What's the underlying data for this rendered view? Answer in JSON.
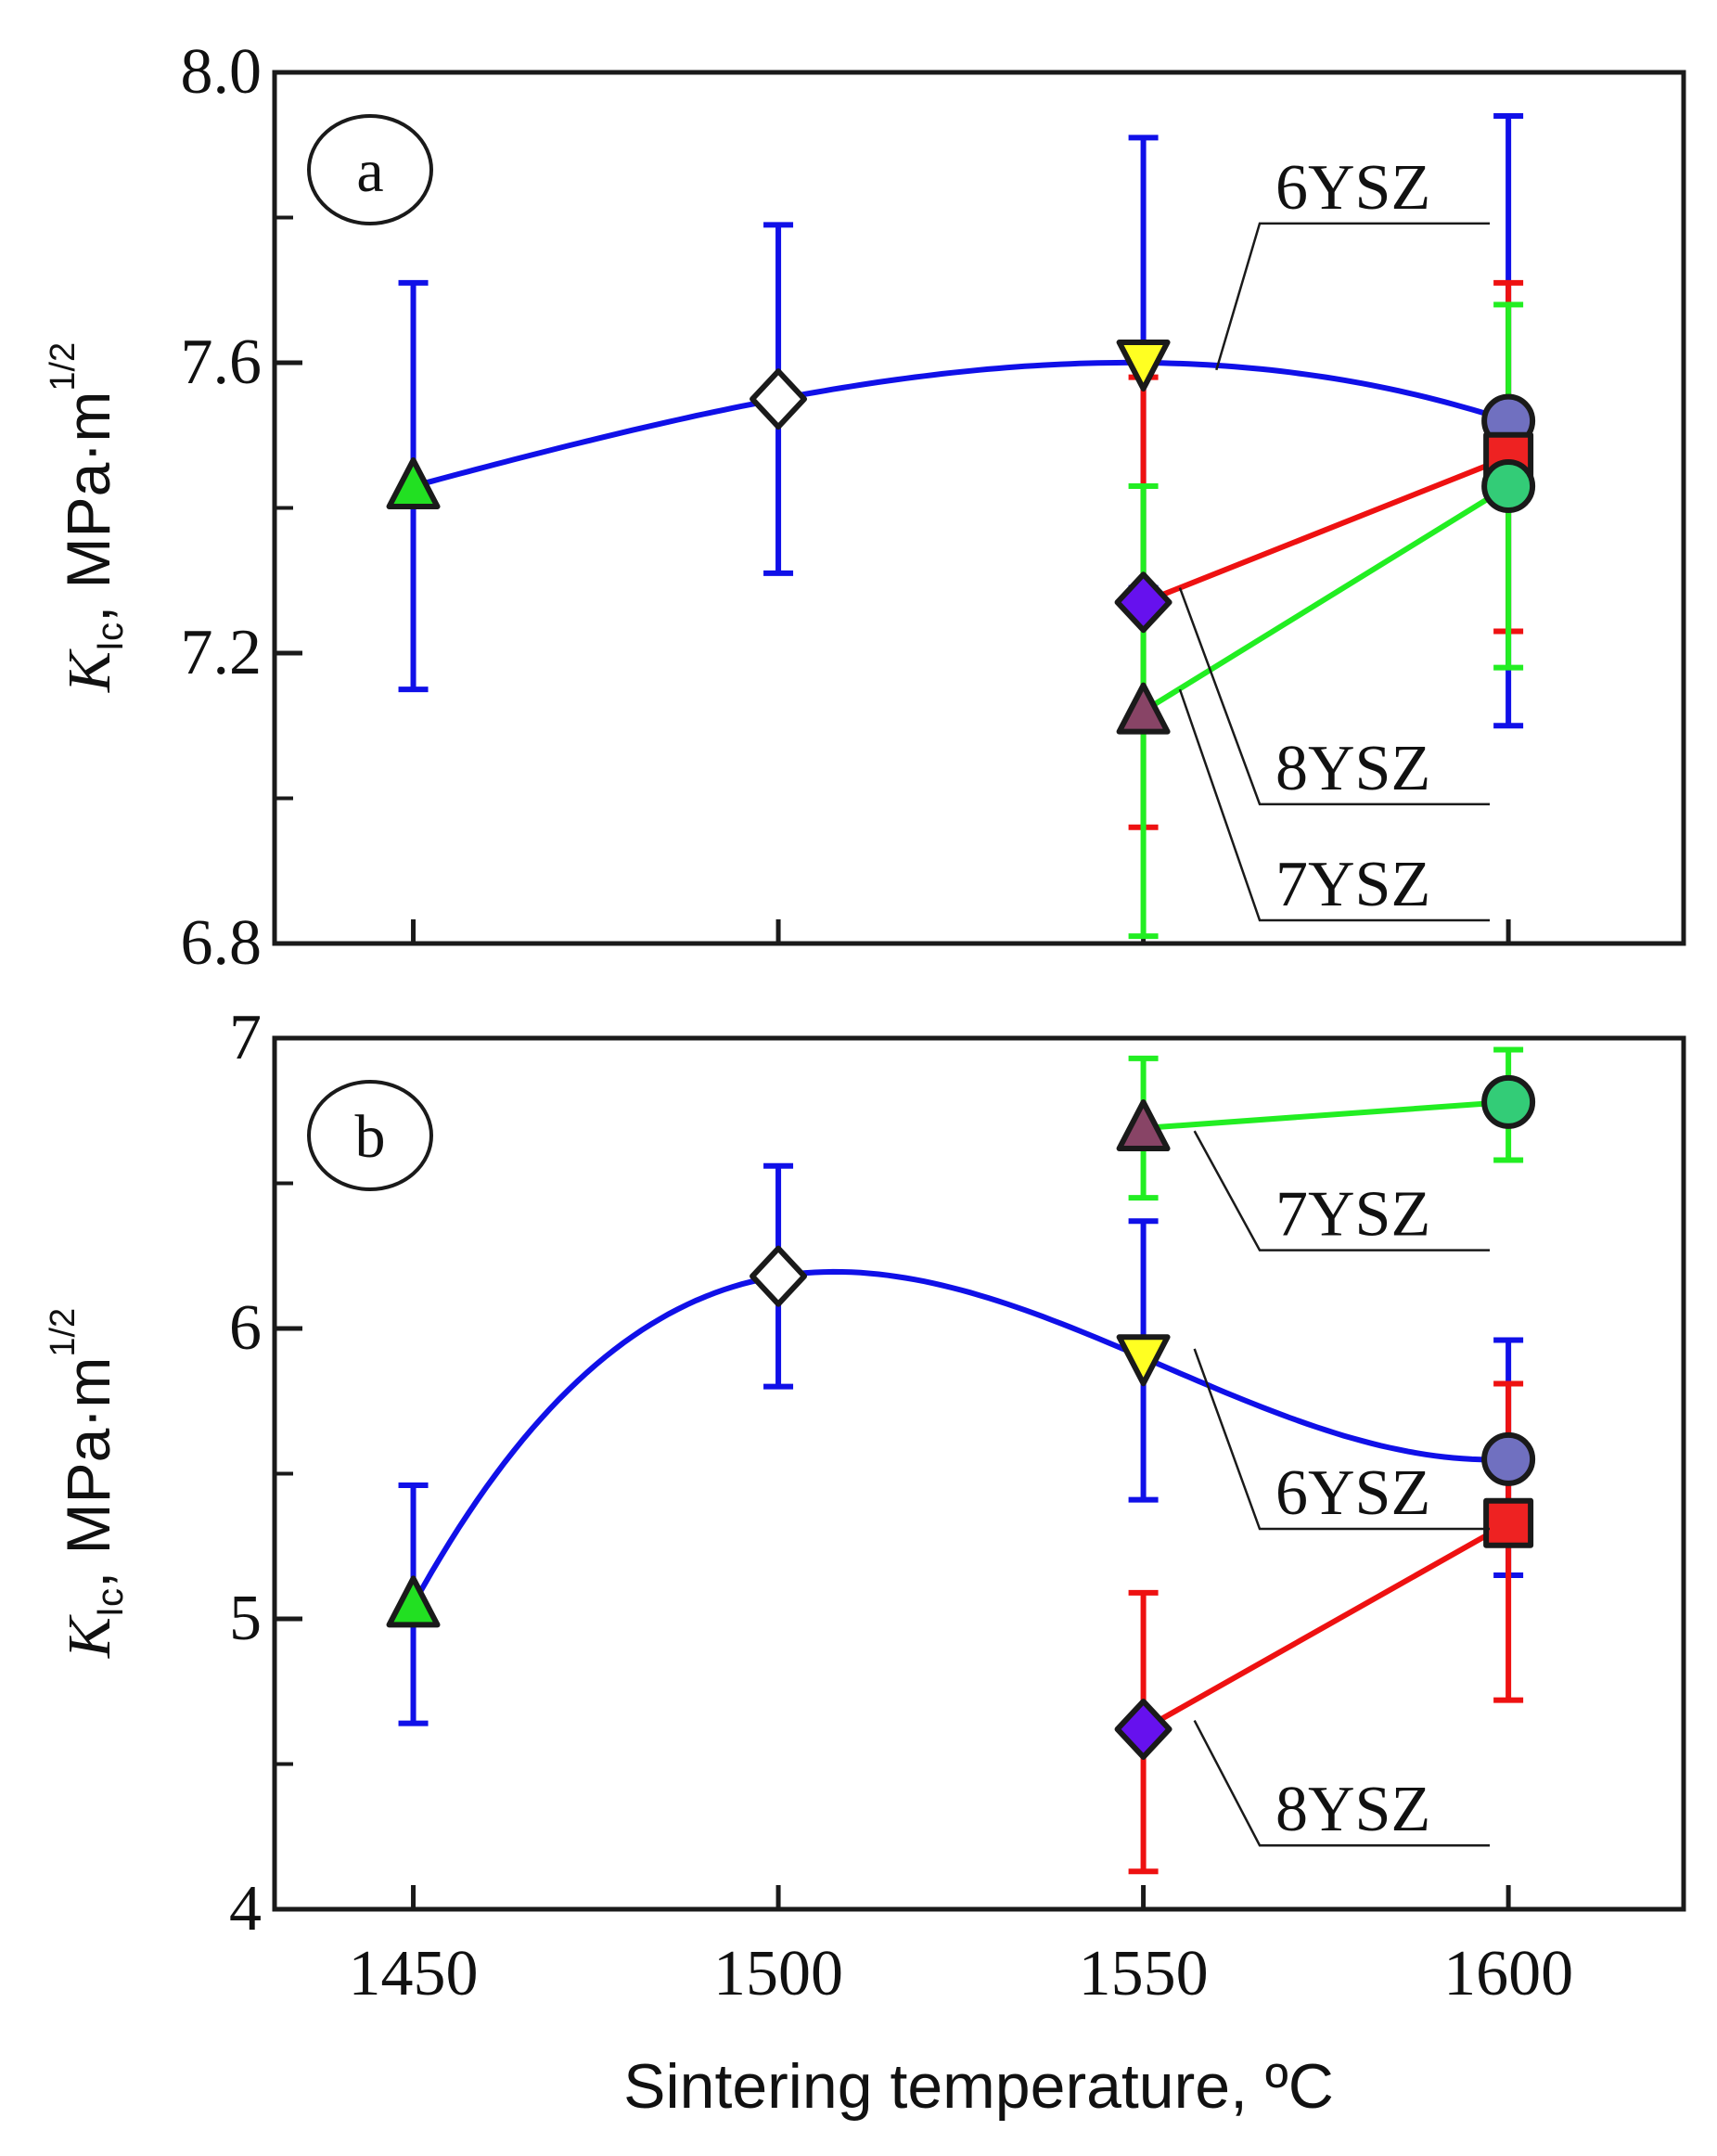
{
  "chart_data": [
    {
      "panel_label": "a",
      "type": "scatter",
      "xlim": [
        1431,
        1624
      ],
      "ylim": [
        6.8,
        8.0
      ],
      "y_ticks": [
        6.8,
        7.2,
        7.6,
        8.0
      ],
      "y_tick_labels": [
        "6.8",
        "7.2",
        "7.6",
        "8.0"
      ],
      "y_minor_ticks": [
        7.0,
        7.4,
        7.8
      ],
      "ylabel": {
        "main": "K",
        "sub": "Ic",
        "sep": ", ",
        "unit": "MPa·m",
        "sup": "1/2"
      },
      "series": [
        {
          "name": "6YSZ",
          "color": "#1010e8",
          "fit": "curve",
          "points": [
            {
              "x": 1450,
              "y": 7.43,
              "err_low": 7.15,
              "err_high": 7.71,
              "marker": "triangle",
              "fill": "#22e022"
            },
            {
              "x": 1500,
              "y": 7.55,
              "err_low": 7.31,
              "err_high": 7.79,
              "marker": "diamond",
              "fill": "#ffffff"
            },
            {
              "x": 1550,
              "y": 7.6,
              "err_low": 7.29,
              "err_high": 7.91,
              "marker": "triangle-down",
              "fill": "#ffff22"
            },
            {
              "x": 1600,
              "y": 7.52,
              "err_low": 7.1,
              "err_high": 7.94,
              "marker": "circle",
              "fill": "#7070c0"
            }
          ]
        },
        {
          "name": "8YSZ",
          "color": "#ee1111",
          "fit": "line",
          "points": [
            {
              "x": 1550,
              "y": 7.27,
              "err_low": 6.96,
              "err_high": 7.58,
              "marker": "diamond",
              "fill": "#6611ee"
            },
            {
              "x": 1600,
              "y": 7.47,
              "err_low": 7.23,
              "err_high": 7.71,
              "marker": "square",
              "fill": "#ee2222"
            }
          ]
        },
        {
          "name": "7YSZ",
          "color": "#22ee22",
          "fit": "line",
          "points": [
            {
              "x": 1550,
              "y": 7.12,
              "err_low": 6.81,
              "err_high": 7.43,
              "marker": "triangle",
              "fill": "#884466"
            },
            {
              "x": 1600,
              "y": 7.43,
              "err_low": 7.18,
              "err_high": 7.68,
              "marker": "circle",
              "fill": "#33cc77"
            }
          ]
        }
      ],
      "labels": [
        {
          "text": "6YSZ",
          "series": "6YSZ",
          "leader_to_x": 1560,
          "leader_to_y": 7.59,
          "ty": 7.82
        },
        {
          "text": "8YSZ",
          "series": "8YSZ",
          "leader_to_x": 1555,
          "leader_to_y": 7.29,
          "ty": 7.02
        },
        {
          "text": "7YSZ",
          "series": "7YSZ",
          "leader_to_x": 1555,
          "leader_to_y": 7.15,
          "ty": 6.86
        }
      ]
    },
    {
      "panel_label": "b",
      "type": "scatter",
      "xlim": [
        1431,
        1624
      ],
      "ylim": [
        4,
        7
      ],
      "y_ticks": [
        4,
        5,
        6,
        7
      ],
      "y_tick_labels": [
        "4",
        "5",
        "6",
        "7"
      ],
      "y_minor_ticks": [
        4.5,
        5.5,
        6.5
      ],
      "ylabel": {
        "main": "K",
        "sub": "Ic",
        "sep": ", ",
        "unit": "MPa·m",
        "sup": "1/2"
      },
      "xlabel": "Sintering temperature, ºC",
      "x_ticks": [
        1450,
        1500,
        1550,
        1600
      ],
      "x_tick_labels": [
        "1450",
        "1500",
        "1550",
        "1600"
      ],
      "series": [
        {
          "name": "6YSZ",
          "color": "#1010e8",
          "fit": "curve",
          "points": [
            {
              "x": 1450,
              "y": 5.05,
              "err_low": 4.64,
              "err_high": 5.46,
              "marker": "triangle",
              "fill": "#22e022"
            },
            {
              "x": 1500,
              "y": 6.18,
              "err_low": 5.8,
              "err_high": 6.56,
              "marker": "diamond",
              "fill": "#ffffff"
            },
            {
              "x": 1550,
              "y": 5.9,
              "err_low": 5.41,
              "err_high": 6.37,
              "marker": "triangle-down",
              "fill": "#ffff22"
            },
            {
              "x": 1600,
              "y": 5.55,
              "err_low": 5.15,
              "err_high": 5.96,
              "marker": "circle",
              "fill": "#7070c0"
            }
          ]
        },
        {
          "name": "8YSZ",
          "color": "#ee1111",
          "fit": "line",
          "points": [
            {
              "x": 1550,
              "y": 4.62,
              "err_low": 4.13,
              "err_high": 5.09,
              "marker": "diamond",
              "fill": "#6611ee"
            },
            {
              "x": 1600,
              "y": 5.33,
              "err_low": 4.72,
              "err_high": 5.81,
              "marker": "square",
              "fill": "#ee2222"
            }
          ]
        },
        {
          "name": "7YSZ",
          "color": "#22ee22",
          "fit": "line",
          "points": [
            {
              "x": 1550,
              "y": 6.69,
              "err_low": 6.45,
              "err_high": 6.93,
              "marker": "triangle",
              "fill": "#884466"
            },
            {
              "x": 1600,
              "y": 6.78,
              "err_low": 6.58,
              "err_high": 6.96,
              "marker": "circle",
              "fill": "#33cc77"
            }
          ]
        }
      ],
      "labels": [
        {
          "text": "7YSZ",
          "series": "7YSZ",
          "leader_to_x": 1557,
          "leader_to_y": 6.68,
          "ty": 6.34
        },
        {
          "text": "6YSZ",
          "series": "6YSZ",
          "leader_to_x": 1557,
          "leader_to_y": 5.93,
          "ty": 5.38
        },
        {
          "text": "8YSZ",
          "series": "8YSZ",
          "leader_to_x": 1557,
          "leader_to_y": 4.65,
          "ty": 4.29
        }
      ]
    }
  ]
}
